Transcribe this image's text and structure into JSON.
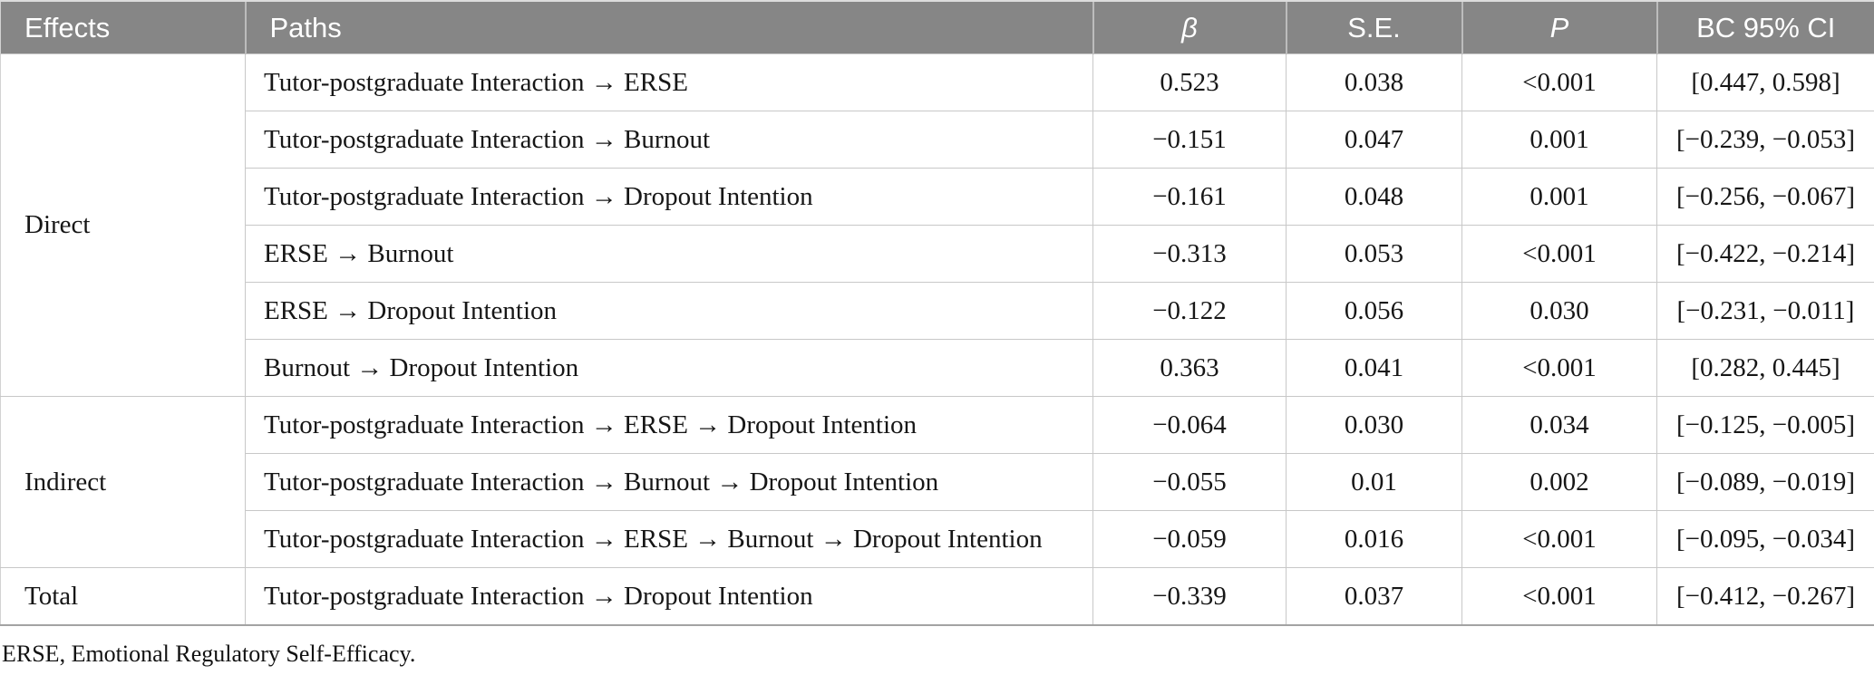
{
  "table": {
    "columns": [
      {
        "key": "effects",
        "label": "Effects"
      },
      {
        "key": "paths",
        "label": "Paths"
      },
      {
        "key": "beta",
        "label": "β"
      },
      {
        "key": "se",
        "label": "S.E."
      },
      {
        "key": "p",
        "label": "P"
      },
      {
        "key": "ci",
        "label": "BC 95% CI"
      }
    ],
    "groups": [
      {
        "effect": "Direct",
        "rows": [
          {
            "path": "Tutor-postgraduate Interaction → ERSE",
            "beta": "0.523",
            "se": "0.038",
            "p": "<0.001",
            "ci": "[0.447, 0.598]"
          },
          {
            "path": "Tutor-postgraduate Interaction → Burnout",
            "beta": "−0.151",
            "se": "0.047",
            "p": "0.001",
            "ci": "[−0.239, −0.053]"
          },
          {
            "path": "Tutor-postgraduate Interaction → Dropout Intention",
            "beta": "−0.161",
            "se": "0.048",
            "p": "0.001",
            "ci": "[−0.256, −0.067]"
          },
          {
            "path": "ERSE → Burnout",
            "beta": "−0.313",
            "se": "0.053",
            "p": "<0.001",
            "ci": "[−0.422, −0.214]"
          },
          {
            "path": "ERSE → Dropout Intention",
            "beta": "−0.122",
            "se": "0.056",
            "p": "0.030",
            "ci": "[−0.231, −0.011]"
          },
          {
            "path": "Burnout → Dropout Intention",
            "beta": "0.363",
            "se": "0.041",
            "p": "<0.001",
            "ci": "[0.282, 0.445]"
          }
        ]
      },
      {
        "effect": "Indirect",
        "rows": [
          {
            "path": "Tutor-postgraduate Interaction → ERSE → Dropout Intention",
            "beta": "−0.064",
            "se": "0.030",
            "p": "0.034",
            "ci": "[−0.125, −0.005]"
          },
          {
            "path": "Tutor-postgraduate Interaction → Burnout → Dropout Intention",
            "beta": "−0.055",
            "se": "0.01",
            "p": "0.002",
            "ci": "[−0.089, −0.019]"
          },
          {
            "path": "Tutor-postgraduate Interaction → ERSE → Burnout → Dropout Intention",
            "beta": "−0.059",
            "se": "0.016",
            "p": "<0.001",
            "ci": "[−0.095, −0.034]"
          }
        ]
      },
      {
        "effect": "Total",
        "rows": [
          {
            "path": "Tutor-postgraduate Interaction → Dropout Intention",
            "beta": "−0.339",
            "se": "0.037",
            "p": "<0.001",
            "ci": "[−0.412, −0.267]"
          }
        ]
      }
    ],
    "footnote": "ERSE, Emotional Regulatory Self-Efficacy."
  },
  "colors": {
    "header_bg": "#868686",
    "header_text": "#ffffff",
    "body_text": "#161616",
    "row_border": "#c8c8c8",
    "bottom_border": "#a3a3a3"
  }
}
